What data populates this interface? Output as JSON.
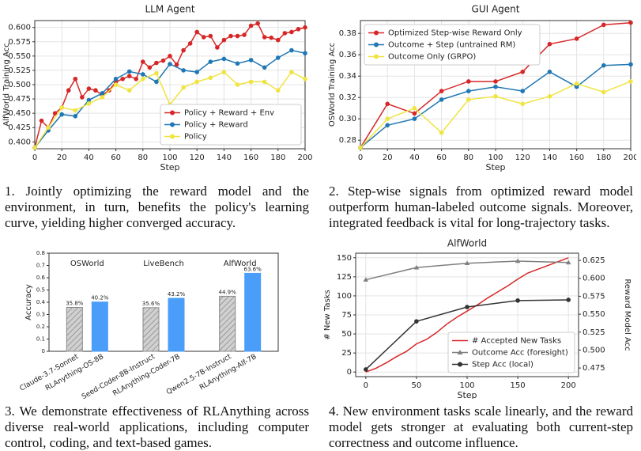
{
  "chart_data": [
    {
      "type": "line",
      "title": "LLM Agent",
      "xlabel": "Step",
      "ylabel": "AlfWorld Training Acc",
      "xlim": [
        0,
        200
      ],
      "xticks": [
        0,
        20,
        40,
        60,
        80,
        100,
        120,
        140,
        160,
        180,
        200
      ],
      "ylim": [
        0.388,
        0.612
      ],
      "yticks": [
        {
          "value": 0.4,
          "label": "0.400"
        },
        0.425,
        {
          "value": 0.45,
          "label": "0.450"
        },
        0.475,
        {
          "value": 0.5,
          "label": "0.500"
        },
        0.525,
        {
          "value": 0.55,
          "label": "0.550"
        },
        0.575,
        {
          "value": 0.6,
          "label": "0.600"
        }
      ],
      "grid": true,
      "legend": "lower right",
      "series": [
        {
          "name": "Policy + Reward + Env",
          "color": "#d62728",
          "marker": "o",
          "x": [
            0,
            5,
            10,
            15,
            20,
            25,
            30,
            35,
            40,
            45,
            50,
            55,
            60,
            65,
            70,
            75,
            80,
            85,
            90,
            95,
            100,
            105,
            110,
            115,
            120,
            125,
            130,
            135,
            140,
            145,
            150,
            155,
            160,
            165,
            170,
            175,
            180,
            185,
            190,
            195,
            200
          ],
          "values": [
            0.39,
            0.437,
            0.425,
            0.45,
            0.46,
            0.49,
            0.51,
            0.478,
            0.493,
            0.49,
            0.482,
            0.49,
            0.505,
            0.51,
            0.515,
            0.51,
            0.54,
            0.53,
            0.538,
            0.542,
            0.55,
            0.535,
            0.56,
            0.572,
            0.592,
            0.583,
            0.585,
            0.565,
            0.578,
            0.585,
            0.585,
            0.587,
            0.603,
            0.607,
            0.583,
            0.582,
            0.578,
            0.59,
            0.592,
            0.597,
            0.6
          ]
        },
        {
          "name": "Policy + Reward",
          "color": "#1f77b4",
          "marker": "o",
          "x": [
            0,
            10,
            20,
            30,
            40,
            50,
            60,
            70,
            80,
            90,
            100,
            110,
            120,
            130,
            140,
            150,
            160,
            170,
            180,
            190,
            200
          ],
          "values": [
            0.39,
            0.42,
            0.448,
            0.445,
            0.473,
            0.485,
            0.51,
            0.523,
            0.518,
            0.505,
            0.536,
            0.525,
            0.522,
            0.54,
            0.545,
            0.537,
            0.543,
            0.53,
            0.547,
            0.56,
            0.555
          ]
        },
        {
          "name": "Policy",
          "color": "#f0e442",
          "marker": "o",
          "x": [
            0,
            10,
            20,
            30,
            40,
            50,
            60,
            70,
            80,
            90,
            100,
            110,
            120,
            130,
            140,
            150,
            160,
            170,
            180,
            190,
            200
          ],
          "values": [
            0.39,
            0.425,
            0.46,
            0.455,
            0.467,
            0.478,
            0.5,
            0.49,
            0.51,
            0.52,
            0.465,
            0.495,
            0.505,
            0.512,
            0.522,
            0.5,
            0.505,
            0.505,
            0.49,
            0.522,
            0.51
          ]
        }
      ],
      "caption": "1. Jointly optimizing the reward model and the environment, in turn, benefits the policy's learning curve, yielding higher converged accuracy."
    },
    {
      "type": "line",
      "title": "GUI Agent",
      "xlabel": "Step",
      "ylabel": "OSWorld Training Acc",
      "xlim": [
        0,
        200
      ],
      "xticks": [
        0,
        20,
        40,
        60,
        80,
        100,
        120,
        140,
        160,
        180,
        200
      ],
      "ylim": [
        0.272,
        0.392
      ],
      "yticks": [
        0.28,
        {
          "value": 0.3,
          "label": "0.30"
        },
        0.32,
        0.34,
        0.36,
        0.38
      ],
      "grid": true,
      "legend": "upper left",
      "series": [
        {
          "name": "Optimized Step-wise Reward Only",
          "color": "#d62728",
          "marker": "o",
          "x": [
            0,
            20,
            40,
            60,
            80,
            100,
            120,
            140,
            160,
            180,
            200
          ],
          "values": [
            0.273,
            0.314,
            0.305,
            0.326,
            0.335,
            0.335,
            0.344,
            0.37,
            0.375,
            0.388,
            0.39
          ]
        },
        {
          "name": "Outcome + Step (untrained RM)",
          "color": "#1f77b4",
          "marker": "o",
          "x": [
            0,
            20,
            40,
            60,
            80,
            100,
            120,
            140,
            160,
            180,
            200
          ],
          "values": [
            0.273,
            0.294,
            0.3,
            0.318,
            0.326,
            0.33,
            0.326,
            0.344,
            0.33,
            0.35,
            0.351
          ]
        },
        {
          "name": "Outcome Only (GRPO)",
          "color": "#f0e442",
          "marker": "o",
          "x": [
            0,
            20,
            40,
            60,
            80,
            100,
            120,
            140,
            160,
            180,
            200
          ],
          "values": [
            0.273,
            0.3,
            0.31,
            0.287,
            0.318,
            0.321,
            0.314,
            0.321,
            0.333,
            0.325,
            0.335
          ]
        }
      ],
      "caption": "2. Step-wise signals from optimized reward model outperform human-labeled outcome signals. Moreover, integrated feedback is vital for long-trajectory tasks."
    },
    {
      "type": "bar",
      "ylabel": "Accuracy",
      "groups": [
        "OSWorld",
        "LiveBench",
        "AlfWorld"
      ],
      "categories": [
        "Claude-3.7-Sonnet",
        "RLAnything-OS-8B",
        "Seed-Coder-8B-Instruct",
        "RLAnything-Coder-7B",
        "Qwen2.5-7B-Instruct",
        "RLAnything-Alf-7B"
      ],
      "values": [
        0.358,
        0.402,
        0.356,
        0.432,
        0.449,
        0.636
      ],
      "value_labels": [
        "35.8%",
        "40.2%",
        "35.6%",
        "43.2%",
        "44.9%",
        "63.6%"
      ],
      "colors": [
        "#c9c9c9",
        "#4a9df8",
        "#c9c9c9",
        "#4a9df8",
        "#c9c9c9",
        "#4a9df8"
      ],
      "hatch": [
        true,
        false,
        true,
        false,
        true,
        false
      ],
      "ylim": [
        0,
        0.8
      ],
      "yticks": [
        0,
        0.1,
        0.2,
        0.3,
        0.4,
        0.5,
        0.6,
        0.7,
        0.8
      ],
      "caption": "3. We demonstrate effectiveness of RLAnything across diverse real-world applications, including computer control, coding, and text-based games."
    },
    {
      "type": "line",
      "title": "AlfWorld",
      "xlabel": "Step",
      "ylabel": "# New Tasks",
      "ylabel_color": "#d62728",
      "y2label": "Reward Model Acc",
      "xlim": [
        -10,
        210
      ],
      "xticks": [
        0,
        50,
        100,
        150,
        200
      ],
      "ylim": [
        -6,
        156
      ],
      "yticks": [
        0,
        25,
        50,
        75,
        100,
        125,
        150
      ],
      "y2lim": [
        0.463,
        0.635
      ],
      "y2ticks": [
        0.475,
        {
          "value": 0.5,
          "label": "0.500"
        },
        0.525,
        {
          "value": 0.55,
          "label": "0.550"
        },
        0.575,
        {
          "value": 0.6,
          "label": "0.600"
        },
        0.625
      ],
      "grid": true,
      "legend": "lower right",
      "series": [
        {
          "name": "# Accepted New Tasks",
          "color": "#d62728",
          "marker": "none",
          "x": [
            0,
            10,
            20,
            30,
            40,
            50,
            60,
            70,
            80,
            90,
            100,
            110,
            120,
            130,
            140,
            150,
            160,
            170,
            180,
            190,
            200
          ],
          "values": [
            0,
            5,
            12,
            20,
            27,
            37,
            43,
            52,
            63,
            72,
            80,
            88,
            97,
            105,
            113,
            122,
            130,
            135,
            140,
            145,
            150
          ]
        },
        {
          "name": "Outcome Acc (foresight)",
          "color": "#808080",
          "marker": "^",
          "axis": "y2",
          "x": [
            0,
            50,
            100,
            150,
            200
          ],
          "values": [
            0.598,
            0.615,
            0.621,
            0.624,
            0.622
          ]
        },
        {
          "name": "Step Acc (local)",
          "color": "#333333",
          "marker": "o",
          "axis": "y2",
          "x": [
            0,
            50,
            100,
            150,
            200
          ],
          "values": [
            0.473,
            0.54,
            0.56,
            0.569,
            0.57
          ]
        }
      ],
      "caption": "4. New environment tasks scale linearly, and the reward model gets stronger at evaluating both current-step correctness and outcome influence."
    }
  ]
}
